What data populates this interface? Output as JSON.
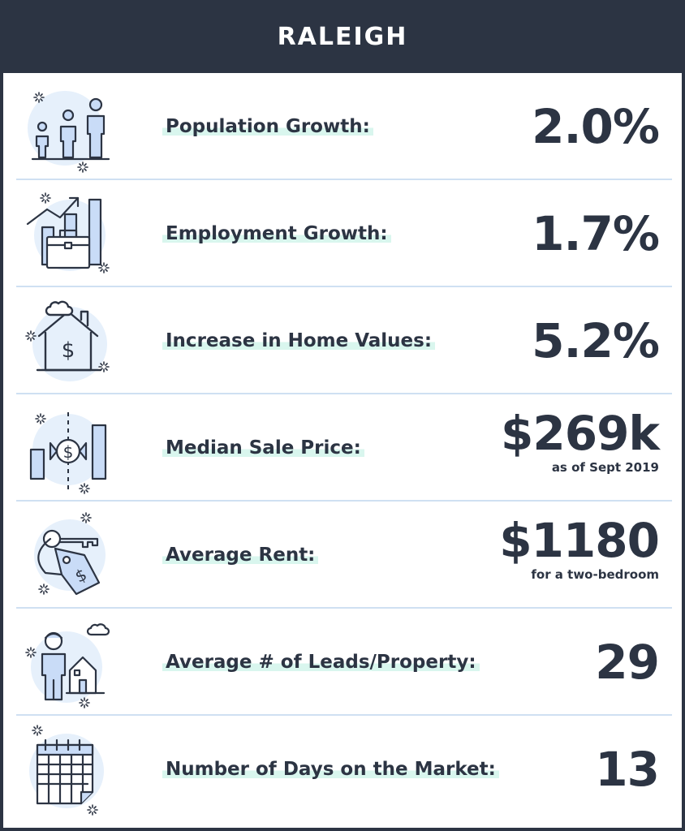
{
  "header": {
    "title": "RALEIGH"
  },
  "rows": [
    {
      "label": "Population Growth:",
      "value": "2.0%",
      "icon": "population-icon"
    },
    {
      "label": "Employment Growth:",
      "value": "1.7%",
      "icon": "briefcase-chart-icon"
    },
    {
      "label": "Increase in Home Values:",
      "value": "5.2%",
      "icon": "house-dollar-icon"
    },
    {
      "label": "Median Sale Price:",
      "value": "$269k",
      "note": "as  of Sept 2019",
      "icon": "price-compare-icon"
    },
    {
      "label": "Average Rent:",
      "value": "$1180",
      "note": "for a two-bedroom",
      "icon": "key-tag-icon"
    },
    {
      "label": "Average # of Leads/Property:",
      "value": "29",
      "icon": "person-house-icon"
    },
    {
      "label": "Number of Days on the Market:",
      "value": "13",
      "icon": "calendar-icon"
    }
  ],
  "colors": {
    "header_bg": "#2c3443",
    "text": "#2c3443",
    "label_highlight": "#d9f6ee",
    "divider": "#cfe0f2",
    "icon_circle": "#e6f0fb",
    "icon_fill": "#c9dcf7"
  }
}
